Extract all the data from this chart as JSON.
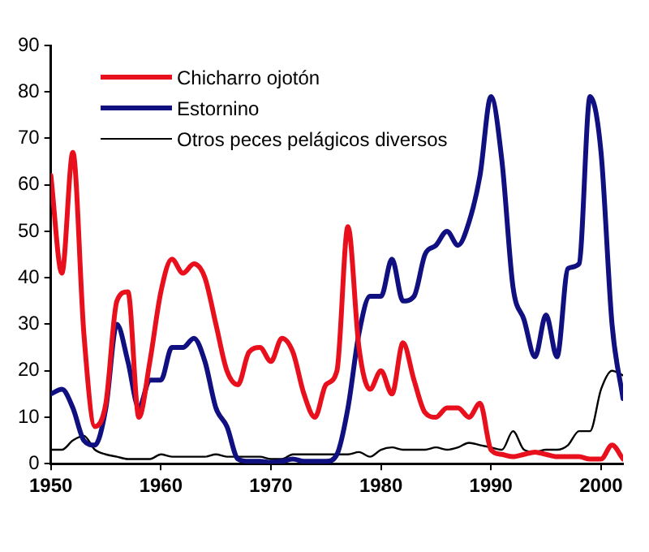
{
  "chart_data": {
    "type": "line",
    "x": [
      1950,
      1951,
      1952,
      1953,
      1954,
      1955,
      1956,
      1957,
      1958,
      1959,
      1960,
      1961,
      1962,
      1963,
      1964,
      1965,
      1966,
      1967,
      1968,
      1969,
      1970,
      1971,
      1972,
      1973,
      1974,
      1975,
      1976,
      1977,
      1978,
      1979,
      1980,
      1981,
      1982,
      1983,
      1984,
      1985,
      1986,
      1987,
      1988,
      1989,
      1990,
      1991,
      1992,
      1993,
      1994,
      1995,
      1996,
      1997,
      1998,
      1999,
      2000,
      2001,
      2002
    ],
    "series": [
      {
        "name": "Chicharro ojotón",
        "color": "#e8101c",
        "values": [
          62,
          41,
          67,
          28,
          8,
          13,
          35,
          37,
          10,
          22,
          37,
          44,
          41,
          43,
          40,
          30,
          20,
          17,
          24,
          25,
          22,
          27,
          24,
          15,
          10,
          17,
          20,
          51,
          25,
          16,
          20,
          15,
          26,
          18,
          11,
          10,
          12,
          12,
          10,
          13,
          3,
          2,
          1.5,
          2,
          2.5,
          2,
          1.5,
          1.5,
          1.5,
          1,
          1,
          4,
          1
        ]
      },
      {
        "name": "Estornino",
        "color": "#101080",
        "values": [
          15,
          16,
          12,
          5,
          4,
          12,
          30,
          22,
          12,
          18,
          18,
          25,
          25,
          27,
          22,
          12,
          8,
          1,
          0.5,
          0.5,
          0.3,
          0.5,
          1,
          0.5,
          0.5,
          0.5,
          2,
          12,
          28,
          36,
          36,
          44,
          35,
          36,
          45,
          47,
          50,
          47,
          52,
          62,
          79,
          65,
          38,
          31,
          23,
          32,
          23,
          42,
          43,
          79,
          67,
          30,
          14
        ]
      },
      {
        "name": "Otros peces pelágicos diversos",
        "color": "#000000",
        "values": [
          3,
          3,
          5,
          6,
          3,
          2,
          1.5,
          1,
          1,
          1,
          2,
          1.5,
          1.5,
          1.5,
          1.5,
          2,
          1.5,
          1.5,
          1.5,
          1.5,
          1,
          1,
          2,
          2,
          2,
          2,
          2,
          2,
          2.5,
          1.5,
          3,
          3.5,
          3,
          3,
          3,
          3.5,
          3,
          3.5,
          4.5,
          4,
          3.5,
          3,
          7,
          3,
          2.5,
          3,
          3,
          4,
          7,
          7,
          16,
          20,
          19
        ]
      }
    ],
    "xlim": [
      1950,
      2002
    ],
    "xticks": [
      1950,
      1960,
      1970,
      1980,
      1990,
      2000
    ],
    "ylim": [
      0,
      90
    ],
    "yticks": [
      0,
      10,
      20,
      30,
      40,
      50,
      60,
      70,
      80,
      90
    ],
    "grid": false,
    "legend": "top left",
    "marker": "none",
    "line_style": "solid"
  }
}
